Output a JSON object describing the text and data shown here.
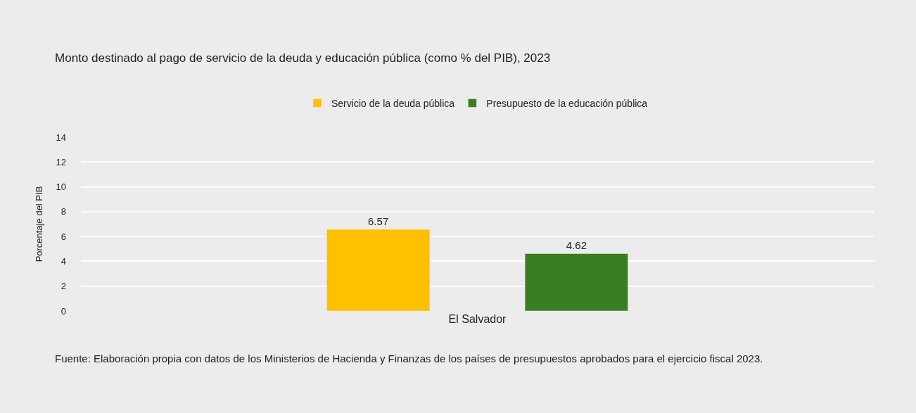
{
  "chart_data": {
    "type": "bar",
    "title": "Monto destinado al pago de servicio de la deuda y educación pública (como % del PIB), 2023",
    "ylabel": "Porcentaje del PIB",
    "categories": [
      "El Salvador"
    ],
    "series": [
      {
        "name": "Servicio de la deuda pública",
        "color": "#ffc000",
        "values": [
          6.57
        ]
      },
      {
        "name": "Presupuesto de la educación pública",
        "color": "#3b7d23",
        "values": [
          4.62
        ]
      }
    ],
    "ylim": [
      0,
      14
    ],
    "yticks": [
      0,
      2,
      4,
      6,
      8,
      10,
      12,
      14
    ],
    "grid": "y",
    "legend": "top",
    "data_labels": true,
    "annotations": [
      "Fuente: Elaboración propia con datos de los Ministerios de Hacienda y Finanzas de los países de presupuestos aprobados para el ejercicio fiscal 2023."
    ]
  }
}
